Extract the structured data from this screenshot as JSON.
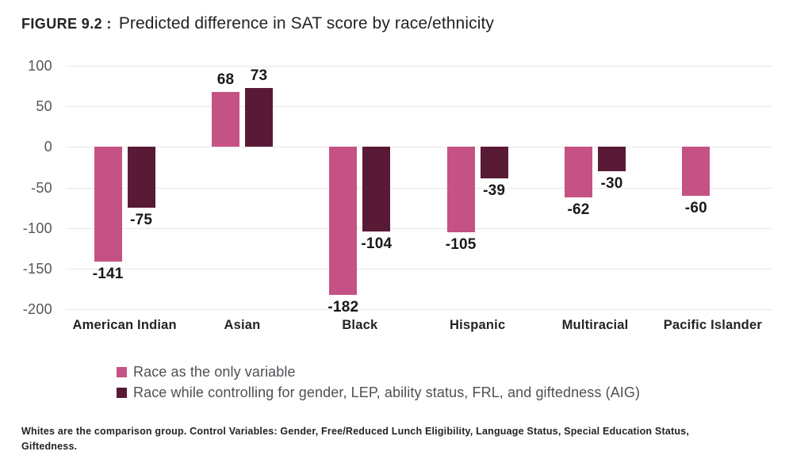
{
  "title": {
    "figure_label": "FIGURE 9.2 :",
    "text": "Predicted difference in SAT score by race/ethnicity"
  },
  "chart_data": {
    "type": "bar",
    "title": "Predicted difference in SAT score by race/ethnicity",
    "categories": [
      "American Indian",
      "Asian",
      "Black",
      "Hispanic",
      "Multiracial",
      "Pacific Islander"
    ],
    "series": [
      {
        "name": "Race as the only variable",
        "color": "#c55284",
        "values": [
          -141,
          68,
          -182,
          -105,
          -62,
          -60
        ]
      },
      {
        "name": "Race while controlling for gender, LEP, ability status, FRL, and giftedness (AIG)",
        "color": "#591a36",
        "values": [
          -75,
          73,
          -104,
          -39,
          -30,
          null
        ]
      }
    ],
    "xlabel": "",
    "ylabel": "",
    "ylim": [
      -200,
      100
    ],
    "yticks": [
      100,
      50,
      0,
      -50,
      -100,
      -150,
      -200
    ],
    "grid": true,
    "legend_position": "bottom",
    "value_labels_shown": true
  },
  "footnote": "Whites are the comparison group. Control Variables: Gender, Free/Reduced Lunch Eligibility, Language Status, Special Education Status, Giftedness.",
  "colors": {
    "series1": "#c55284",
    "series2": "#591a36",
    "gridline": "#e9e7e7",
    "tick_text": "#54565b",
    "label_text": "#19191b",
    "background": "#ffffff"
  }
}
